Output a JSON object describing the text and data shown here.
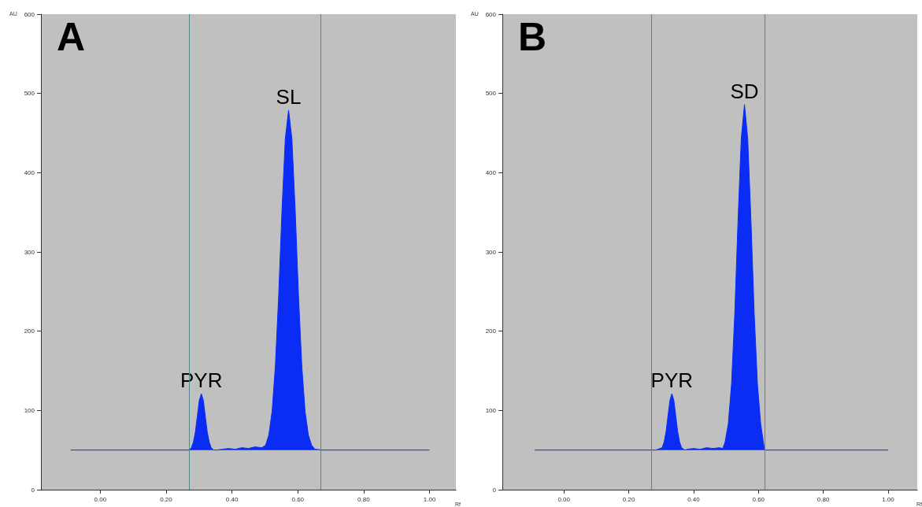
{
  "chart_data": [
    {
      "type": "area",
      "xlabel": "Rf",
      "ylabel": "AU",
      "annotations": [
        "A",
        {
          "text": "PYR",
          "x": 0.307,
          "y": 121
        },
        {
          "text": "SL",
          "x": 0.572,
          "y": 479
        }
      ],
      "x": [
        -0.09,
        0.27,
        0.277,
        0.283,
        0.289,
        0.295,
        0.301,
        0.307,
        0.313,
        0.319,
        0.325,
        0.331,
        0.337,
        0.345,
        0.356,
        0.37,
        0.39,
        0.41,
        0.43,
        0.45,
        0.47,
        0.49,
        0.502,
        0.512,
        0.522,
        0.532,
        0.542,
        0.552,
        0.562,
        0.572,
        0.582,
        0.592,
        0.602,
        0.612,
        0.622,
        0.632,
        0.642,
        0.652,
        0.674,
        1.0
      ],
      "series": [
        {
          "color": "#0a2cf5",
          "values": [
            50,
            50,
            53,
            60,
            73,
            93,
            113,
            121,
            113,
            93,
            73,
            60,
            53,
            50,
            50,
            51,
            52,
            51,
            53,
            52,
            54,
            53,
            56,
            69,
            99,
            157,
            246,
            353,
            443,
            479,
            443,
            353,
            246,
            157,
            99,
            69,
            56,
            51,
            50,
            50
          ]
        }
      ],
      "xlim": [
        -0.18,
        1.08
      ],
      "xticks": [
        {
          "value": 0,
          "label": "0.00"
        },
        {
          "value": 0.2,
          "label": "0.20"
        },
        {
          "value": 0.4,
          "label": "0.40"
        },
        {
          "value": 0.6,
          "label": "0.60"
        },
        {
          "value": 0.8,
          "label": "0.80"
        },
        {
          "value": 1,
          "label": "1.00"
        }
      ],
      "ylim": [
        0,
        600
      ],
      "yticks": [
        0,
        100,
        200,
        300,
        400,
        500,
        600
      ],
      "grid": false,
      "ref_lines": [
        {
          "axis": "x",
          "value": 0.265,
          "color": "#4f8a86"
        },
        {
          "axis": "x",
          "value": 0.674,
          "color": "#4f8a86"
        }
      ]
    },
    {
      "type": "area",
      "xlabel": "Rf",
      "ylabel": "AU",
      "annotations": [
        "B",
        {
          "text": "PYR",
          "x": 0.333,
          "y": 121
        },
        {
          "text": "SD",
          "x": 0.557,
          "y": 486
        }
      ],
      "x": [
        -0.09,
        0.283,
        0.303,
        0.309,
        0.315,
        0.321,
        0.327,
        0.333,
        0.339,
        0.345,
        0.351,
        0.357,
        0.363,
        0.373,
        0.38,
        0.4,
        0.42,
        0.44,
        0.46,
        0.48,
        0.49,
        0.497,
        0.507,
        0.517,
        0.527,
        0.537,
        0.547,
        0.557,
        0.567,
        0.577,
        0.587,
        0.597,
        0.607,
        0.617,
        0.62,
        1.0
      ],
      "series": [
        {
          "color": "#0a2cf5",
          "values": [
            50,
            50,
            53,
            60,
            73,
            93,
            113,
            121,
            113,
            93,
            73,
            60,
            53,
            50,
            51,
            52,
            51,
            53,
            52,
            53,
            52,
            60,
            83,
            133,
            222,
            339,
            443,
            486,
            443,
            339,
            222,
            133,
            83,
            55,
            50,
            50
          ]
        }
      ],
      "xlim": [
        -0.19,
        1.09
      ],
      "xticks": [
        {
          "value": 0,
          "label": "0.00"
        },
        {
          "value": 0.2,
          "label": "0.20"
        },
        {
          "value": 0.4,
          "label": "0.40"
        },
        {
          "value": 0.6,
          "label": "0.60"
        },
        {
          "value": 0.8,
          "label": "0.80"
        },
        {
          "value": 1,
          "label": "1.00"
        }
      ],
      "ylim": [
        0,
        600
      ],
      "yticks": [
        0,
        100,
        200,
        300,
        400,
        500,
        600
      ],
      "grid": false,
      "ref_lines": [
        {
          "axis": "x",
          "value": 0.268,
          "color": "#4f8a86"
        },
        {
          "axis": "x",
          "value": 0.62,
          "color": "#4f8a86"
        }
      ]
    }
  ]
}
